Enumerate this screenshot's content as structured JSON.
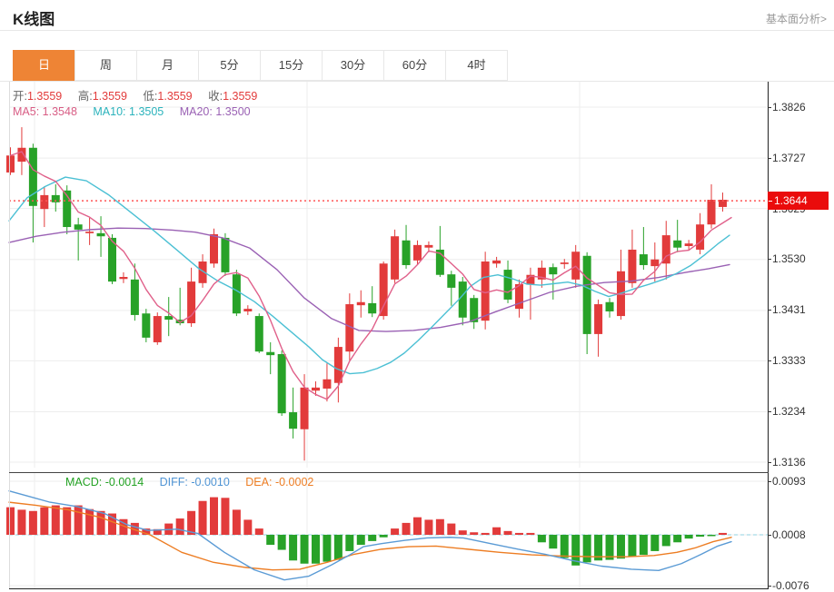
{
  "header": {
    "title": "K线图",
    "analysis_link": "基本面分析>"
  },
  "tabs": [
    {
      "label": "日",
      "active": true
    },
    {
      "label": "周",
      "active": false
    },
    {
      "label": "月",
      "active": false
    },
    {
      "label": "5分",
      "active": false
    },
    {
      "label": "15分",
      "active": false
    },
    {
      "label": "30分",
      "active": false
    },
    {
      "label": "60分",
      "active": false
    },
    {
      "label": "4时",
      "active": false
    }
  ],
  "legend": {
    "ohlc": [
      {
        "label": "开:",
        "value": "1.3559"
      },
      {
        "label": "高:",
        "value": "1.3559"
      },
      {
        "label": "低:",
        "value": "1.3559"
      },
      {
        "label": "收:",
        "value": "1.3559"
      }
    ],
    "ohlc_value_color": "#e23b3b",
    "ma": [
      {
        "label": "MA5:",
        "value": "1.3548",
        "color": "#d85c84"
      },
      {
        "label": "MA10:",
        "value": "1.3505",
        "color": "#2bb3bc"
      },
      {
        "label": "MA20:",
        "value": "1.3500",
        "color": "#9a61b4"
      }
    ]
  },
  "macd_legend": [
    {
      "label": "MACD:",
      "value": "-0.0014",
      "color": "#23a223"
    },
    {
      "label": "DIFF:",
      "value": "-0.0010",
      "color": "#4f94d4"
    },
    {
      "label": "DEA:",
      "value": "-0.0002",
      "color": "#ed7d23"
    }
  ],
  "price_axis": {
    "ticks": [
      "1.3826",
      "1.3727",
      "1.3629",
      "1.3530",
      "1.3431",
      "1.3333",
      "1.3234",
      "1.3136"
    ],
    "current": "1.3644"
  },
  "macd_axis": {
    "ticks": [
      "0.0093",
      "0.0008",
      "-0.0076"
    ]
  },
  "chart_data": {
    "type": "candlestick-with-macd",
    "title": "K线图 (daily)",
    "price_ticks": [
      1.3826,
      1.3727,
      1.3629,
      1.353,
      1.3431,
      1.3333,
      1.3234,
      1.3136
    ],
    "current_price": 1.3644,
    "legend_entries": [
      "MA5",
      "MA10",
      "MA20",
      "MACD",
      "DIFF",
      "DEA"
    ],
    "grid": true,
    "candles_ohlc_note": "each candle = [open, high, low, close]; red=close>=open, green=close<open",
    "candles": [
      [
        1.3699,
        1.3748,
        1.3694,
        1.3732
      ],
      [
        1.372,
        1.3787,
        1.3694,
        1.3747
      ],
      [
        1.3747,
        1.3755,
        1.3563,
        1.3634
      ],
      [
        1.3628,
        1.3672,
        1.3593,
        1.3655
      ],
      [
        1.3655,
        1.3676,
        1.3623,
        1.3641
      ],
      [
        1.3664,
        1.3674,
        1.3579,
        1.3593
      ],
      [
        1.3598,
        1.3611,
        1.3528,
        1.3588
      ],
      [
        1.3581,
        1.3611,
        1.3558,
        1.3584
      ],
      [
        1.3581,
        1.3614,
        1.3535,
        1.3575
      ],
      [
        1.3572,
        1.3579,
        1.3482,
        1.3487
      ],
      [
        1.3492,
        1.3505,
        1.3484,
        1.3496
      ],
      [
        1.3491,
        1.3522,
        1.3411,
        1.3422
      ],
      [
        1.3425,
        1.3434,
        1.3369,
        1.3378
      ],
      [
        1.3369,
        1.3427,
        1.3364,
        1.342
      ],
      [
        1.342,
        1.3457,
        1.3381,
        1.3413
      ],
      [
        1.3413,
        1.3475,
        1.3402,
        1.3406
      ],
      [
        1.3406,
        1.3514,
        1.3399,
        1.3487
      ],
      [
        1.3484,
        1.354,
        1.3475,
        1.3526
      ],
      [
        1.3522,
        1.359,
        1.3514,
        1.3579
      ],
      [
        1.3572,
        1.3581,
        1.3498,
        1.3505
      ],
      [
        1.3501,
        1.351,
        1.342,
        1.3425
      ],
      [
        1.3429,
        1.3441,
        1.3422,
        1.3434
      ],
      [
        1.342,
        1.3425,
        1.3348,
        1.3351
      ],
      [
        1.335,
        1.3369,
        1.3307,
        1.3344
      ],
      [
        1.3346,
        1.3353,
        1.3226,
        1.3231
      ],
      [
        1.3233,
        1.3281,
        1.3182,
        1.3201
      ],
      [
        1.32,
        1.3307,
        1.3139,
        1.3281
      ],
      [
        1.3275,
        1.3293,
        1.3265,
        1.3281
      ],
      [
        1.3279,
        1.3328,
        1.3254,
        1.3297
      ],
      [
        1.329,
        1.3378,
        1.3252,
        1.336
      ],
      [
        1.3351,
        1.3464,
        1.3334,
        1.3443
      ],
      [
        1.3441,
        1.347,
        1.3417,
        1.3447
      ],
      [
        1.3445,
        1.3478,
        1.3418,
        1.3425
      ],
      [
        1.342,
        1.3526,
        1.3413,
        1.3522
      ],
      [
        1.3491,
        1.3588,
        1.3484,
        1.3575
      ],
      [
        1.3567,
        1.3597,
        1.3512,
        1.3519
      ],
      [
        1.3528,
        1.3567,
        1.3519,
        1.3558
      ],
      [
        1.3553,
        1.3565,
        1.3544,
        1.3558
      ],
      [
        1.3549,
        1.3595,
        1.3496,
        1.35
      ],
      [
        1.3501,
        1.3508,
        1.344,
        1.3475
      ],
      [
        1.3487,
        1.3496,
        1.3402,
        1.3417
      ],
      [
        1.3455,
        1.3461,
        1.3395,
        1.3408
      ],
      [
        1.3411,
        1.3545,
        1.3394,
        1.3526
      ],
      [
        1.3522,
        1.3535,
        1.3514,
        1.3528
      ],
      [
        1.351,
        1.3528,
        1.3445,
        1.3452
      ],
      [
        1.3434,
        1.3491,
        1.3417,
        1.3482
      ],
      [
        1.3482,
        1.3514,
        1.3413,
        1.35
      ],
      [
        1.3491,
        1.3528,
        1.3475,
        1.3514
      ],
      [
        1.3515,
        1.3522,
        1.3452,
        1.3501
      ],
      [
        1.3521,
        1.3531,
        1.3512,
        1.3524
      ],
      [
        1.3491,
        1.3558,
        1.3475,
        1.3545
      ],
      [
        1.3537,
        1.3544,
        1.3346,
        1.3385
      ],
      [
        1.3385,
        1.3452,
        1.3341,
        1.3443
      ],
      [
        1.3447,
        1.3455,
        1.3417,
        1.3429
      ],
      [
        1.342,
        1.3549,
        1.3413,
        1.3507
      ],
      [
        1.3484,
        1.3588,
        1.3475,
        1.3549
      ],
      [
        1.354,
        1.3593,
        1.351,
        1.3519
      ],
      [
        1.3517,
        1.3563,
        1.3487,
        1.353
      ],
      [
        1.3522,
        1.3605,
        1.3491,
        1.3577
      ],
      [
        1.3567,
        1.3607,
        1.3544,
        1.3553
      ],
      [
        1.3556,
        1.3568,
        1.3547,
        1.3561
      ],
      [
        1.3549,
        1.362,
        1.354,
        1.3598
      ],
      [
        1.3598,
        1.3676,
        1.359,
        1.3646
      ],
      [
        1.3632,
        1.366,
        1.3623,
        1.3646
      ]
    ],
    "ma10_points": [
      [
        10,
        1.3605
      ],
      [
        30,
        1.365
      ],
      [
        50,
        1.3672
      ],
      [
        72,
        1.369
      ],
      [
        95,
        1.3683
      ],
      [
        120,
        1.3655
      ],
      [
        145,
        1.362
      ],
      [
        170,
        1.3585
      ],
      [
        195,
        1.3548
      ],
      [
        219,
        1.3512
      ],
      [
        240,
        1.3488
      ],
      [
        260,
        1.347
      ],
      [
        280,
        1.3448
      ],
      [
        300,
        1.342
      ],
      [
        320,
        1.339
      ],
      [
        340,
        1.336
      ],
      [
        355,
        1.3335
      ],
      [
        370,
        1.3318
      ],
      [
        385,
        1.3308
      ],
      [
        400,
        1.331
      ],
      [
        415,
        1.3318
      ],
      [
        430,
        1.333
      ],
      [
        445,
        1.3348
      ],
      [
        460,
        1.3372
      ],
      [
        475,
        1.3398
      ],
      [
        490,
        1.3425
      ],
      [
        505,
        1.3452
      ],
      [
        518,
        1.3478
      ],
      [
        532,
        1.3495
      ],
      [
        548,
        1.35
      ],
      [
        565,
        1.3492
      ],
      [
        580,
        1.3482
      ],
      [
        595,
        1.348
      ],
      [
        610,
        1.3483
      ],
      [
        625,
        1.3486
      ],
      [
        640,
        1.348
      ],
      [
        655,
        1.3468
      ],
      [
        670,
        1.3458
      ],
      [
        685,
        1.3465
      ],
      [
        700,
        1.3474
      ],
      [
        715,
        1.3482
      ],
      [
        730,
        1.3491
      ],
      [
        745,
        1.3503
      ],
      [
        760,
        1.3518
      ],
      [
        775,
        1.3538
      ],
      [
        790,
        1.356
      ],
      [
        803,
        1.3577
      ]
    ],
    "ma20_points": [
      [
        10,
        1.3563
      ],
      [
        40,
        1.3575
      ],
      [
        70,
        1.3583
      ],
      [
        100,
        1.3588
      ],
      [
        130,
        1.3591
      ],
      [
        160,
        1.359
      ],
      [
        190,
        1.3587
      ],
      [
        215,
        1.3583
      ],
      [
        245,
        1.3572
      ],
      [
        275,
        1.3552
      ],
      [
        305,
        1.351
      ],
      [
        335,
        1.3455
      ],
      [
        365,
        1.3415
      ],
      [
        395,
        1.3392
      ],
      [
        425,
        1.339
      ],
      [
        455,
        1.3392
      ],
      [
        485,
        1.3398
      ],
      [
        515,
        1.3408
      ],
      [
        545,
        1.3428
      ],
      [
        575,
        1.3447
      ],
      [
        605,
        1.3466
      ],
      [
        635,
        1.3478
      ],
      [
        665,
        1.3485
      ],
      [
        695,
        1.3488
      ],
      [
        725,
        1.3495
      ],
      [
        755,
        1.3505
      ],
      [
        780,
        1.3512
      ],
      [
        803,
        1.352
      ]
    ],
    "macd": {
      "histogram": [
        0.0044,
        0.004,
        0.0038,
        0.0044,
        0.0047,
        0.0044,
        0.0047,
        0.0041,
        0.0038,
        0.0034,
        0.0025,
        0.0019,
        0.001,
        0.0009,
        0.0018,
        0.0026,
        0.0038,
        0.0054,
        0.006,
        0.0059,
        0.004,
        0.0024,
        0.001,
        -0.0016,
        -0.0024,
        -0.0041,
        -0.0046,
        -0.0046,
        -0.0043,
        -0.004,
        -0.0026,
        -0.0016,
        -0.001,
        -0.0004,
        0.001,
        0.0019,
        0.0028,
        0.0024,
        0.0025,
        0.0018,
        0.0007,
        0.0004,
        0.0003,
        0.0012,
        0.0006,
        0.0003,
        0.0003,
        -0.0012,
        -0.0022,
        -0.0037,
        -0.0049,
        -0.0044,
        -0.0041,
        -0.004,
        -0.0038,
        -0.0035,
        -0.0032,
        -0.0026,
        -0.0018,
        -0.0012,
        -0.0006,
        -0.0003,
        -0.0002,
        0.0003
      ],
      "diff_points": [
        [
          10,
          0.007
        ],
        [
          30,
          0.0062
        ],
        [
          55,
          0.0052
        ],
        [
          85,
          0.0045
        ],
        [
          115,
          0.0034
        ],
        [
          140,
          0.0016
        ],
        [
          163,
          0.0007
        ],
        [
          195,
          0.0009
        ],
        [
          218,
          0.0002
        ],
        [
          247,
          -0.0028
        ],
        [
          280,
          -0.0056
        ],
        [
          313,
          -0.0072
        ],
        [
          340,
          -0.0066
        ],
        [
          365,
          -0.0048
        ],
        [
          385,
          -0.0032
        ],
        [
          400,
          -0.0019
        ],
        [
          420,
          -0.0014
        ],
        [
          445,
          -0.0009
        ],
        [
          470,
          -0.0005
        ],
        [
          495,
          -0.0004
        ],
        [
          510,
          -0.0005
        ],
        [
          540,
          -0.0014
        ],
        [
          570,
          -0.0023
        ],
        [
          600,
          -0.0031
        ],
        [
          630,
          -0.0041
        ],
        [
          662,
          -0.005
        ],
        [
          695,
          -0.0055
        ],
        [
          725,
          -0.0057
        ],
        [
          750,
          -0.0046
        ],
        [
          772,
          -0.0031
        ],
        [
          790,
          -0.0018
        ],
        [
          805,
          -0.0011
        ]
      ],
      "dea_points": [
        [
          10,
          0.0052
        ],
        [
          40,
          0.0047
        ],
        [
          75,
          0.004
        ],
        [
          110,
          0.0028
        ],
        [
          140,
          0.0012
        ],
        [
          165,
          0.0
        ],
        [
          200,
          -0.0028
        ],
        [
          235,
          -0.0044
        ],
        [
          270,
          -0.0052
        ],
        [
          300,
          -0.0056
        ],
        [
          330,
          -0.0055
        ],
        [
          360,
          -0.0044
        ],
        [
          390,
          -0.0031
        ],
        [
          420,
          -0.0023
        ],
        [
          450,
          -0.0019
        ],
        [
          480,
          -0.0018
        ],
        [
          515,
          -0.0023
        ],
        [
          550,
          -0.0028
        ],
        [
          585,
          -0.0032
        ],
        [
          620,
          -0.0034
        ],
        [
          655,
          -0.0035
        ],
        [
          690,
          -0.0035
        ],
        [
          720,
          -0.0033
        ],
        [
          745,
          -0.0028
        ],
        [
          765,
          -0.0021
        ],
        [
          785,
          -0.0011
        ],
        [
          805,
          -0.0004
        ]
      ],
      "ticks": [
        0.0093,
        0.0008,
        -0.0076
      ]
    },
    "colors": {
      "up": "#e23b3b",
      "down": "#28a228",
      "ma5": "#e0608a",
      "ma10": "#4cc0d4",
      "ma20": "#9a61b4",
      "diff": "#5b9bd5",
      "dea": "#ed7d23",
      "price_line": "#ff5555",
      "badge": "#ea0c0c",
      "grid": "#ededed",
      "zero_dash": "#8fd0e0"
    }
  }
}
